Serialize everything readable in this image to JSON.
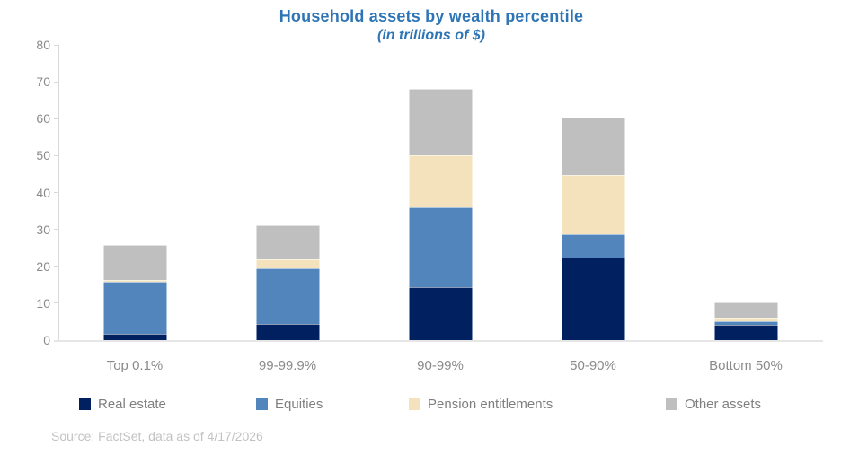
{
  "title": "Household assets by wealth percentile",
  "subtitle": "(in trillions of $)",
  "source": "Source: FactSet, data as of 4/17/2026",
  "colors": {
    "title": "#2e75b6",
    "axis_line": "#d9d9d9",
    "tick_text": "#8a8a8a",
    "legend_text": "#7f7f7f",
    "source_text": "#c2c2c2",
    "real_estate": "#002060",
    "equities": "#5285bc",
    "pension": "#f3e2bb",
    "other": "#bfbfbf"
  },
  "chart_data": {
    "type": "bar",
    "stacked": true,
    "title": "Household assets by wealth percentile",
    "subtitle": "(in trillions of $)",
    "xlabel": "",
    "ylabel": "",
    "units": "trillions of $",
    "categories": [
      "Top 0.1%",
      "99-99.9%",
      "90-99%",
      "50-90%",
      "Bottom 50%"
    ],
    "series": [
      {
        "name": "Real estate",
        "color": "#002060",
        "values": [
          1.8,
          4.3,
          14.3,
          22.3,
          4.2
        ]
      },
      {
        "name": "Equities",
        "color": "#5285bc",
        "values": [
          14.0,
          15.1,
          21.7,
          6.5,
          0.9
        ]
      },
      {
        "name": "Pension entitlements",
        "color": "#f3e2bb",
        "values": [
          0.6,
          2.6,
          14.2,
          16.0,
          1.1
        ]
      },
      {
        "name": "Other assets",
        "color": "#bfbfbf",
        "values": [
          9.3,
          9.1,
          17.8,
          15.4,
          3.9
        ]
      }
    ],
    "totals": [
      25.7,
      31.1,
      68.0,
      60.2,
      10.1
    ],
    "ylim": [
      0,
      80
    ],
    "yticks": [
      0,
      10,
      20,
      30,
      40,
      50,
      60,
      70,
      80
    ],
    "grid": false,
    "legend_position": "bottom"
  }
}
